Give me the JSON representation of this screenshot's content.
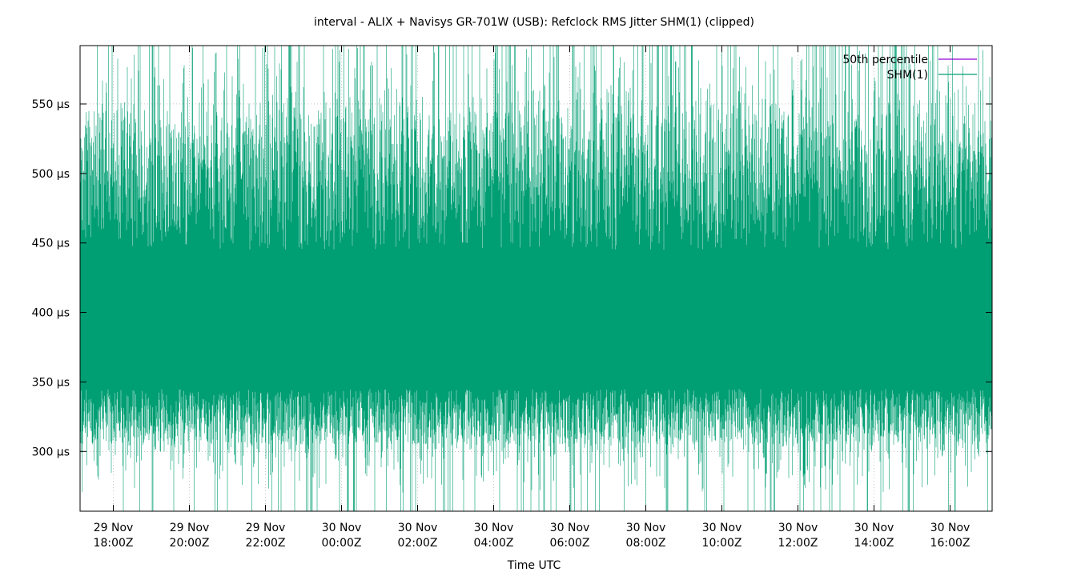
{
  "chart_data": {
    "type": "area",
    "title": "interval - ALIX + Navisys GR-701W (USB): Refclock RMS Jitter SHM(1) (clipped)",
    "xlabel": "Time UTC",
    "ylabel": "",
    "x_ticks": [
      {
        "date": "29 Nov",
        "time": "18:00Z"
      },
      {
        "date": "29 Nov",
        "time": "20:00Z"
      },
      {
        "date": "29 Nov",
        "time": "22:00Z"
      },
      {
        "date": "30 Nov",
        "time": "00:00Z"
      },
      {
        "date": "30 Nov",
        "time": "02:00Z"
      },
      {
        "date": "30 Nov",
        "time": "04:00Z"
      },
      {
        "date": "30 Nov",
        "time": "06:00Z"
      },
      {
        "date": "30 Nov",
        "time": "08:00Z"
      },
      {
        "date": "30 Nov",
        "time": "10:00Z"
      },
      {
        "date": "30 Nov",
        "time": "12:00Z"
      },
      {
        "date": "30 Nov",
        "time": "14:00Z"
      },
      {
        "date": "30 Nov",
        "time": "16:00Z"
      }
    ],
    "xlim": [
      "29 Nov 16:58Z",
      "30 Nov 16:59Z"
    ],
    "y_ticks": [
      {
        "value": 300,
        "label": "300 µs"
      },
      {
        "value": 350,
        "label": "350 µs"
      },
      {
        "value": 400,
        "label": "400 µs"
      },
      {
        "value": 450,
        "label": "450 µs"
      },
      {
        "value": 500,
        "label": "500 µs"
      },
      {
        "value": 550,
        "label": "550 µs"
      }
    ],
    "ylim": [
      257,
      592
    ],
    "unit": "µs",
    "grid": true,
    "legend_position": "top-right",
    "series": [
      {
        "name": "50th percentile",
        "color": "#9400d3",
        "style": "line",
        "value": null
      },
      {
        "name": "SHM(1)",
        "color": "#009e73",
        "style": "impulses",
        "typical_min": 290,
        "typical_max": 560,
        "solid_band": [
          345,
          440
        ]
      }
    ]
  }
}
